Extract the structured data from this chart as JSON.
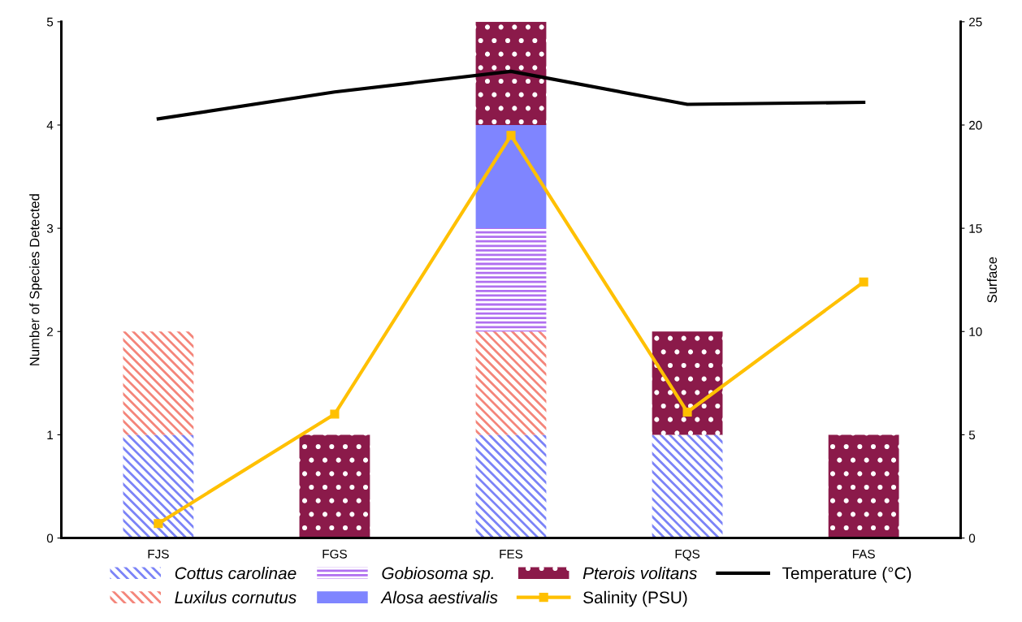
{
  "chart_data": {
    "type": "bar",
    "stacked": true,
    "categories": [
      "FJS",
      "FGS",
      "FES",
      "FQS",
      "FAS"
    ],
    "ylabel": "Number of Species Detected",
    "y2label": "Surface",
    "ylim": [
      0,
      5
    ],
    "yticks": [
      0,
      1,
      2,
      3,
      4,
      5
    ],
    "y2lim": [
      0,
      25
    ],
    "y2ticks": [
      0,
      5,
      10,
      15,
      20,
      25
    ],
    "grid": false,
    "legend": "bottom",
    "series": [
      {
        "name": "Cottus carolinae",
        "color": "#7b83f7",
        "values": [
          1,
          null,
          1,
          1,
          null
        ]
      },
      {
        "name": "Luxilus cornutus",
        "color": "#f4857a",
        "values": [
          1,
          null,
          1,
          null,
          null
        ]
      },
      {
        "name": "Gobiosoma sp.",
        "color": "#b06ff0",
        "values": [
          null,
          null,
          1,
          null,
          null
        ]
      },
      {
        "name": "Alosa aestivalis",
        "color": "#7f85ff",
        "values": [
          null,
          null,
          1,
          null,
          null
        ]
      },
      {
        "name": "Pterois volitans",
        "color": "#8b1a4a",
        "values": [
          null,
          1,
          1,
          1,
          1
        ]
      },
      {
        "name": "Salinity (PSU)",
        "type": "line",
        "axis": "y2",
        "marker": "square",
        "color": "#ffc000",
        "values": [
          0.7,
          6.0,
          19.5,
          6.1,
          12.4
        ]
      },
      {
        "name": "Temperature (°C)",
        "type": "line",
        "axis": "y2",
        "color": "#000000",
        "values": [
          20.3,
          21.6,
          22.6,
          21.0,
          21.1
        ]
      }
    ]
  }
}
